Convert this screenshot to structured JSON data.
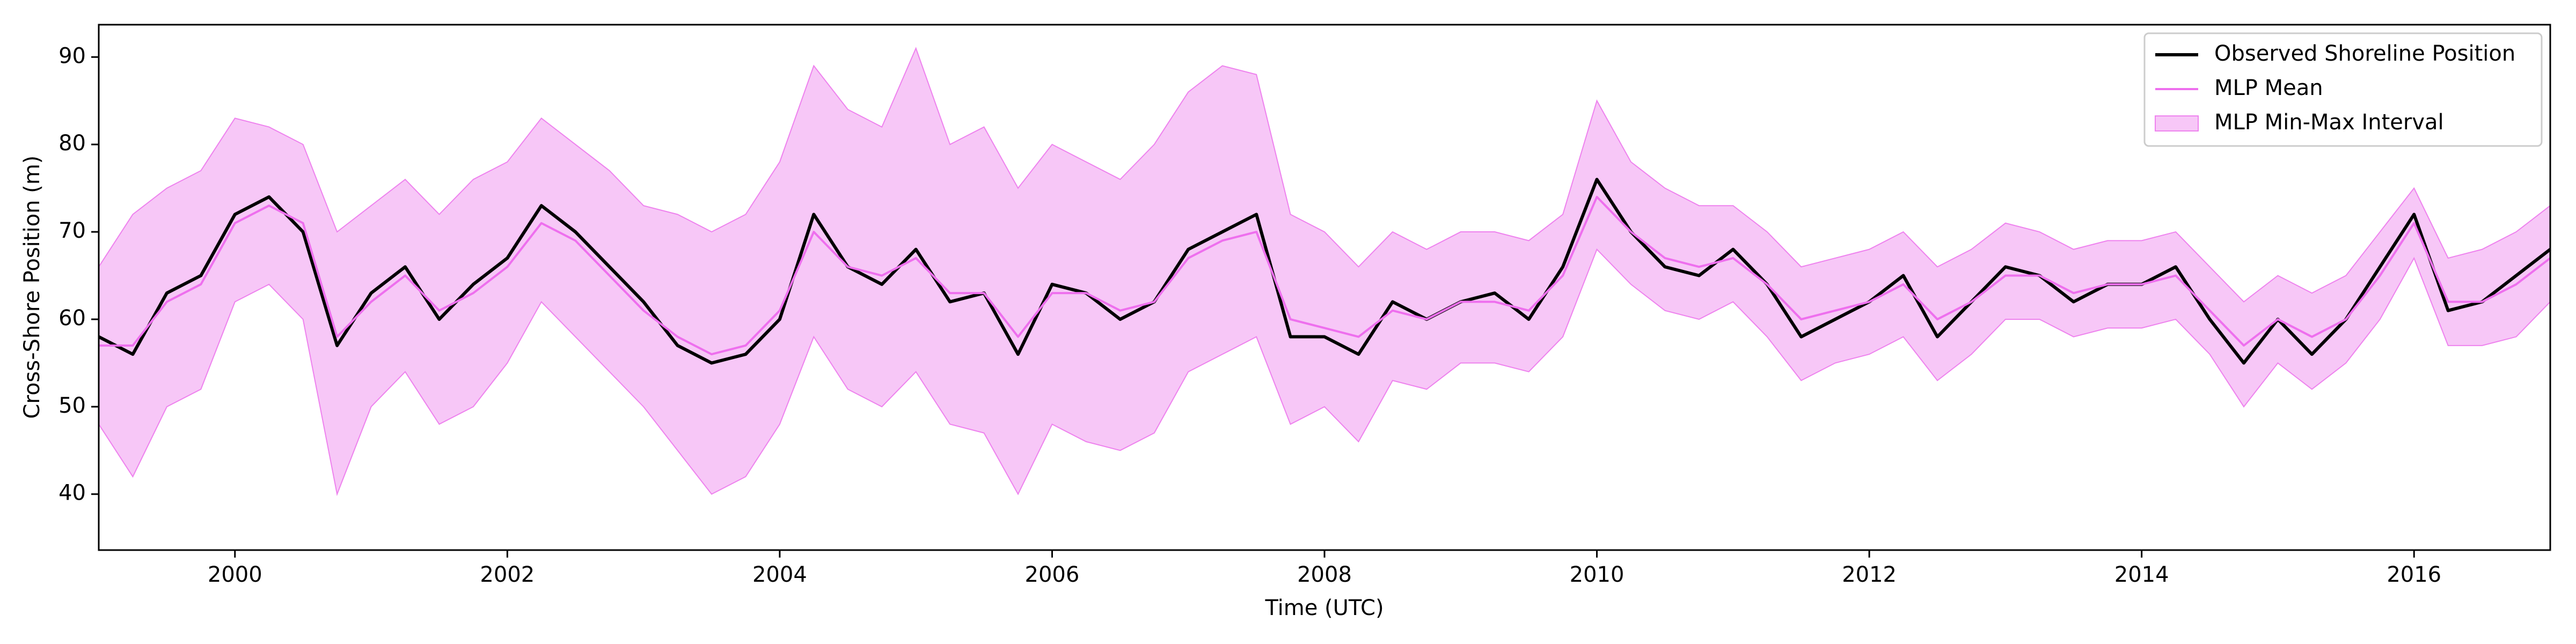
{
  "chart_data": {
    "type": "line",
    "xlabel": "Time (UTC)",
    "ylabel": "Cross-Shore Position (m)",
    "xlim": [
      1999,
      2017
    ],
    "xticks": [
      2000,
      2002,
      2004,
      2006,
      2008,
      2010,
      2012,
      2014,
      2016
    ],
    "ylim": [
      33.6,
      93.7
    ],
    "yticks": [
      40,
      50,
      60,
      70,
      80,
      90
    ],
    "legend": "upper right",
    "x": [
      1999,
      1999.25,
      1999.5,
      1999.75,
      2000,
      2000.25,
      2000.5,
      2000.75,
      2001,
      2001.25,
      2001.5,
      2001.75,
      2002,
      2002.25,
      2002.5,
      2002.75,
      2003,
      2003.25,
      2003.5,
      2003.75,
      2004,
      2004.25,
      2004.5,
      2004.75,
      2005,
      2005.25,
      2005.5,
      2005.75,
      2006,
      2006.25,
      2006.5,
      2006.75,
      2007,
      2007.25,
      2007.5,
      2007.75,
      2008,
      2008.25,
      2008.5,
      2008.75,
      2009,
      2009.25,
      2009.5,
      2009.75,
      2010,
      2010.25,
      2010.5,
      2010.75,
      2011,
      2011.25,
      2011.5,
      2011.75,
      2012,
      2012.25,
      2012.5,
      2012.75,
      2013,
      2013.25,
      2013.5,
      2013.75,
      2014,
      2014.25,
      2014.5,
      2014.75,
      2015,
      2015.25,
      2015.5,
      2015.75,
      2016,
      2016.25,
      2016.5,
      2016.75,
      2017
    ],
    "series": [
      {
        "name": "Observed Shoreline Position",
        "color": "#000000",
        "values": [
          58,
          56,
          63,
          65,
          72,
          74,
          70,
          57,
          63,
          66,
          60,
          64,
          67,
          73,
          70,
          66,
          62,
          57,
          55,
          56,
          60,
          72,
          66,
          64,
          68,
          62,
          63,
          56,
          64,
          63,
          60,
          62,
          68,
          70,
          72,
          58,
          58,
          56,
          62,
          60,
          62,
          63,
          60,
          66,
          76,
          70,
          66,
          65,
          68,
          64,
          58,
          60,
          62,
          65,
          58,
          62,
          66,
          65,
          62,
          64,
          64,
          66,
          60,
          55,
          60,
          56,
          60,
          66,
          72,
          61,
          62,
          65,
          68
        ]
      },
      {
        "name": "MLP Mean",
        "color": "#ee6fee",
        "values": [
          57,
          57,
          62,
          64,
          71,
          73,
          71,
          58,
          62,
          65,
          61,
          63,
          66,
          71,
          69,
          65,
          61,
          58,
          56,
          57,
          61,
          70,
          66,
          65,
          67,
          63,
          63,
          58,
          63,
          63,
          61,
          62,
          67,
          69,
          70,
          60,
          59,
          58,
          61,
          60,
          62,
          62,
          61,
          65,
          74,
          70,
          67,
          66,
          67,
          64,
          60,
          61,
          62,
          64,
          60,
          62,
          65,
          65,
          63,
          64,
          64,
          65,
          61,
          57,
          60,
          58,
          60,
          65,
          71,
          62,
          62,
          64,
          67
        ]
      },
      {
        "name": "MLP Min-Max Interval",
        "color": "#ee82ee",
        "upper": [
          66,
          72,
          75,
          77,
          83,
          82,
          80,
          70,
          73,
          76,
          72,
          76,
          78,
          83,
          80,
          77,
          73,
          72,
          70,
          72,
          78,
          89,
          84,
          82,
          91,
          80,
          82,
          75,
          80,
          78,
          76,
          80,
          86,
          89,
          88,
          72,
          70,
          66,
          70,
          68,
          70,
          70,
          69,
          72,
          85,
          78,
          75,
          73,
          73,
          70,
          66,
          67,
          68,
          70,
          66,
          68,
          71,
          70,
          68,
          69,
          69,
          70,
          66,
          62,
          65,
          63,
          65,
          70,
          75,
          67,
          68,
          70,
          73
        ],
        "lower": [
          48,
          42,
          50,
          52,
          62,
          64,
          60,
          40,
          50,
          54,
          48,
          50,
          55,
          62,
          58,
          54,
          50,
          45,
          40,
          42,
          48,
          58,
          52,
          50,
          54,
          48,
          47,
          40,
          48,
          46,
          45,
          47,
          54,
          56,
          58,
          48,
          50,
          46,
          53,
          52,
          55,
          55,
          54,
          58,
          68,
          64,
          61,
          60,
          62,
          58,
          53,
          55,
          56,
          58,
          53,
          56,
          60,
          60,
          58,
          59,
          59,
          60,
          56,
          50,
          55,
          52,
          55,
          60,
          67,
          57,
          57,
          58,
          62
        ]
      }
    ]
  }
}
